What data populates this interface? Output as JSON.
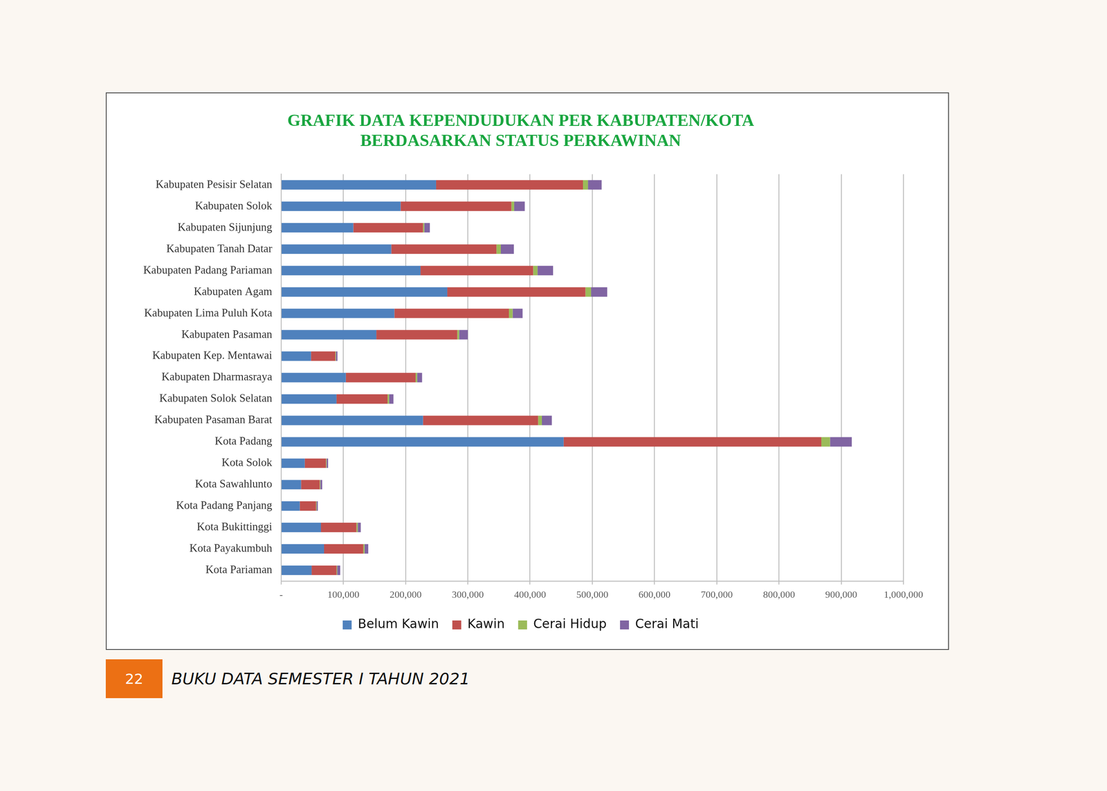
{
  "chart_data": {
    "type": "bar",
    "orientation": "horizontal",
    "stacked": true,
    "grid": true,
    "legend": "bottom",
    "title": [
      "GRAFIK DATA KEPENDUDUKAN PER KABUPATEN/KOTA",
      "BERDASARKAN STATUS PERKAWINAN"
    ],
    "categories": [
      "Kabupaten Pesisir Selatan",
      "Kabupaten Solok",
      "Kabupaten Sijunjung",
      "Kabupaten Tanah Datar",
      "Kabupaten Padang Pariaman",
      "Kabupaten Agam",
      "Kabupaten Lima Puluh Kota",
      "Kabupaten Pasaman",
      "Kabupaten Kep. Mentawai",
      "Kabupaten Dharmasraya",
      "Kabupaten Solok Selatan",
      "Kabupaten Pasaman Barat",
      "Kota Padang",
      "Kota Solok",
      "Kota Sawahlunto",
      "Kota Padang Panjang",
      "Kota Bukittinggi",
      "Kota Payakumbuh",
      "Kota Pariaman"
    ],
    "series": [
      {
        "name": "Belum Kawin",
        "color": "#4f81bd",
        "values": [
          249000,
          192000,
          116000,
          177000,
          224000,
          267000,
          182000,
          153000,
          48000,
          104000,
          89000,
          228000,
          454000,
          38000,
          32000,
          30000,
          64000,
          69000,
          49000
        ]
      },
      {
        "name": "Kawin",
        "color": "#c0504d",
        "values": [
          236000,
          178000,
          112000,
          169000,
          181000,
          222000,
          184000,
          130000,
          39000,
          112000,
          82000,
          185000,
          414000,
          34000,
          30000,
          26000,
          57000,
          63000,
          40000
        ]
      },
      {
        "name": "Cerai Hidup",
        "color": "#9bbb59",
        "values": [
          8000,
          4500,
          2000,
          7000,
          7000,
          9000,
          6000,
          3000,
          1000,
          2500,
          2500,
          6000,
          14000,
          1000,
          1000,
          1000,
          2000,
          2000,
          1000
        ]
      },
      {
        "name": "Cerai Mati",
        "color": "#8064a2",
        "values": [
          22000,
          17000,
          9000,
          21000,
          25000,
          26000,
          16000,
          14000,
          2500,
          8000,
          7000,
          16000,
          35000,
          2500,
          3000,
          2000,
          5000,
          6000,
          5000
        ]
      }
    ],
    "xlim": [
      0,
      1000000
    ],
    "xticks": [
      {
        "value": 0,
        "label": "-"
      },
      {
        "value": 100000,
        "label": "100,000"
      },
      {
        "value": 200000,
        "label": "200,000"
      },
      {
        "value": 300000,
        "label": "300,000"
      },
      {
        "value": 400000,
        "label": "400,000"
      },
      {
        "value": 500000,
        "label": "500,000"
      },
      {
        "value": 600000,
        "label": "600,000"
      },
      {
        "value": 700000,
        "label": "700,000"
      },
      {
        "value": 800000,
        "label": "800,000"
      },
      {
        "value": 900000,
        "label": "900,000"
      },
      {
        "value": 1000000,
        "label": "1,000,000"
      }
    ]
  },
  "footer": {
    "page": "22",
    "text": "BUKU DATA SEMESTER I TAHUN 2021"
  }
}
